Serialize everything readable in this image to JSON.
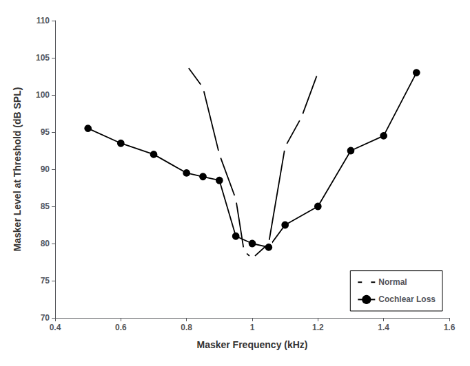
{
  "chart_data": {
    "type": "line",
    "x_label": "Masker Frequency (kHz)",
    "y_label": "Masker Level at Threshold (dB SPL)",
    "series": [
      {
        "name": "Normal",
        "color": "#000000",
        "marker": "open_circle",
        "x": [
          0.8,
          0.85,
          0.9,
          0.95,
          0.975,
          1.0,
          1.05,
          1.1,
          1.15,
          1.2
        ],
        "values": [
          104.0,
          101.0,
          92.0,
          86.0,
          79.0,
          78.0,
          80.0,
          93.0,
          97.0,
          103.0
        ]
      },
      {
        "name": "Cochlear Loss",
        "color": "#000000",
        "marker": "filled_circle",
        "x": [
          0.5,
          0.6,
          0.7,
          0.8,
          0.85,
          0.9,
          0.95,
          1.0,
          1.05,
          1.1,
          1.2,
          1.3,
          1.4,
          1.5
        ],
        "values": [
          95.5,
          93.5,
          92.0,
          89.5,
          89.0,
          88.5,
          81.0,
          80.0,
          79.5,
          82.5,
          85.0,
          92.5,
          94.5,
          103.0
        ]
      }
    ],
    "xlim": [
      0.4,
      1.6
    ],
    "ylim": [
      70,
      110
    ],
    "xticks": [
      0.4,
      0.6,
      0.8,
      1,
      1.2,
      1.4,
      1.6
    ],
    "yticks": [
      70,
      75,
      80,
      85,
      90,
      95,
      100,
      105,
      110
    ],
    "grid": false,
    "legend": "lower right"
  }
}
